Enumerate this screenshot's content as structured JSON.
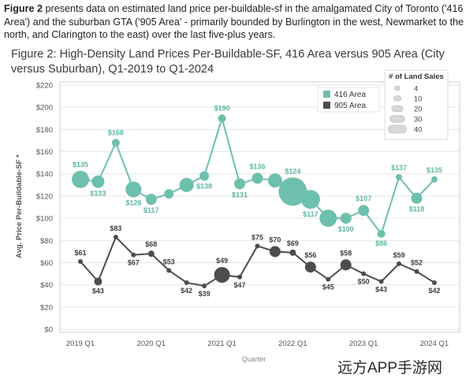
{
  "intro": {
    "figure_ref": "Figure 2",
    "text": " presents data on estimated land price per-buildable-sf in the amalgamated City of Toronto ('416 Area') and the suburban GTA ('905 Area' - primarily bounded by Burlington in the west, Newmarket to the north, and Clarington to the east) over the last five-plus years."
  },
  "watermark": "远方APP手游网",
  "colors": {
    "area_416": "#6dc0ae",
    "area_905": "#4d4d50",
    "label_416": "#5bb8a4",
    "label_905": "#3f3f42",
    "grid": "#e6e6e6"
  },
  "chart_data": {
    "type": "line",
    "title": "Figure 2: High-Density Land Prices Per-Buildable-SF, 416 Area versus 905 Area (City versus Suburban), Q1-2019 to Q1-2024",
    "xlabel": "Quarter",
    "ylabel": "Avg. Price Per-Buildable-SF *",
    "ylim": [
      0,
      220
    ],
    "yticks": [
      0,
      20,
      40,
      60,
      80,
      100,
      120,
      140,
      160,
      180,
      200,
      220
    ],
    "ytick_labels": [
      "$0",
      "$20",
      "$40",
      "$60",
      "$80",
      "$100",
      "$120",
      "$140",
      "$160",
      "$180",
      "$200",
      "$220"
    ],
    "x": [
      "2019 Q1",
      "2019 Q2",
      "2019 Q3",
      "2019 Q4",
      "2020 Q1",
      "2020 Q2",
      "2020 Q3",
      "2020 Q4",
      "2021 Q1",
      "2021 Q2",
      "2021 Q3",
      "2021 Q4",
      "2022 Q1",
      "2022 Q2",
      "2022 Q3",
      "2022 Q4",
      "2023 Q1",
      "2023 Q2",
      "2023 Q3",
      "2023 Q4",
      "2024 Q1"
    ],
    "xtick_labels": [
      "2019 Q1",
      "",
      "",
      "",
      "2020 Q1",
      "",
      "",
      "",
      "2021 Q1",
      "",
      "",
      "",
      "2022 Q1",
      "",
      "",
      "",
      "2023 Q1",
      "",
      "",
      "",
      "2024 Q1"
    ],
    "grid": true,
    "legend_position": "top-right",
    "size_legend": {
      "title": "# of Land Sales",
      "values": [
        4,
        10,
        20,
        30,
        40
      ]
    },
    "series": [
      {
        "name": "416 Area",
        "values": [
          135,
          133,
          168,
          126,
          117,
          122,
          130,
          138,
          190,
          131,
          136,
          134,
          124,
          117,
          100,
          100,
          107,
          86,
          137,
          118,
          135
        ],
        "sizes": [
          22,
          16,
          10,
          20,
          14,
          12,
          18,
          12,
          10,
          14,
          14,
          18,
          36,
          24,
          22,
          14,
          14,
          10,
          8,
          14,
          8
        ],
        "labels": [
          "$135",
          "$133",
          "$168",
          "$126",
          "$117",
          "",
          "",
          "$138",
          "$190",
          "$131",
          "$136",
          "",
          "$124",
          "$117",
          "",
          "$100",
          "$107",
          "$86",
          "$137",
          "$118",
          "$135"
        ],
        "label_pos": [
          "above",
          "below",
          "above",
          "below",
          "below",
          "",
          "",
          "below",
          "above",
          "below",
          "above",
          "",
          "above",
          "below",
          "",
          "below",
          "above",
          "below",
          "above",
          "below",
          "above"
        ]
      },
      {
        "name": "905 Area",
        "values": [
          61,
          43,
          83,
          67,
          68,
          53,
          42,
          39,
          49,
          47,
          75,
          70,
          69,
          56,
          45,
          58,
          50,
          43,
          59,
          52,
          42
        ],
        "sizes": [
          6,
          10,
          6,
          6,
          8,
          6,
          4,
          6,
          20,
          4,
          6,
          14,
          8,
          14,
          4,
          14,
          6,
          4,
          6,
          6,
          6
        ],
        "labels": [
          "$61",
          "$43",
          "$83",
          "$67",
          "$68",
          "$53",
          "$42",
          "$39",
          "$49",
          "$47",
          "$75",
          "$70",
          "$69",
          "$56",
          "$45",
          "$58",
          "$50",
          "$43",
          "$59",
          "$52",
          "$42"
        ],
        "label_pos": [
          "above",
          "below",
          "above",
          "below",
          "above",
          "above",
          "below",
          "below",
          "above",
          "below",
          "above",
          "above",
          "above",
          "above",
          "below",
          "above",
          "below",
          "below",
          "above",
          "above",
          "below"
        ]
      }
    ]
  }
}
